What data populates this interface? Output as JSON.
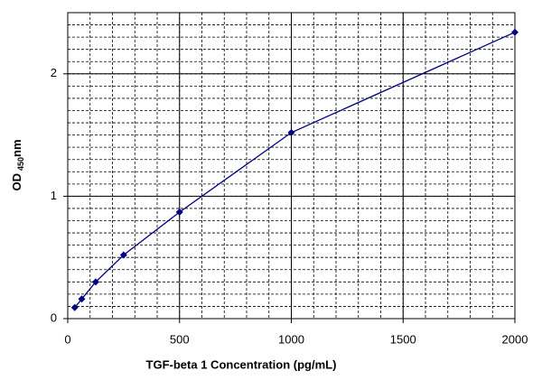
{
  "chart_data": {
    "type": "line",
    "xlabel": "TGF-beta 1 Concentration (pg/mL)",
    "ylabel": "OD",
    "ylabel_sub": "450",
    "ylabel_unit": "nm",
    "x": [
      31.25,
      62.5,
      125,
      250,
      500,
      1000,
      2000
    ],
    "series": [
      {
        "color": "#000080",
        "values": [
          0.09,
          0.16,
          0.3,
          0.52,
          0.87,
          1.52,
          2.34
        ]
      }
    ],
    "xlim": [
      0,
      2000
    ],
    "xticks": [
      0,
      500,
      1000,
      1500,
      2000
    ],
    "ylim": [
      0,
      2.5
    ],
    "yticks": [
      0,
      1,
      2
    ],
    "grid": true,
    "minor_grid": {
      "x": 100,
      "y": 0.1
    }
  }
}
